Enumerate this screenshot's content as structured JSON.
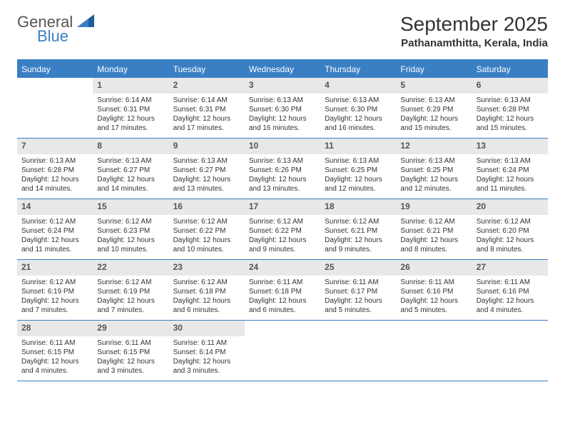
{
  "logo": {
    "text1": "General",
    "text2": "Blue"
  },
  "header": {
    "month_title": "September 2025",
    "location": "Pathanamthitta, Kerala, India"
  },
  "colors": {
    "accent": "#3a7fc4",
    "daynum_bg": "#e8e8e8",
    "bg": "#ffffff",
    "text": "#333333"
  },
  "weekdays": [
    "Sunday",
    "Monday",
    "Tuesday",
    "Wednesday",
    "Thursday",
    "Friday",
    "Saturday"
  ],
  "weeks": [
    [
      {
        "n": "",
        "lines": []
      },
      {
        "n": "1",
        "lines": [
          "Sunrise: 6:14 AM",
          "Sunset: 6:31 PM",
          "Daylight: 12 hours and 17 minutes."
        ]
      },
      {
        "n": "2",
        "lines": [
          "Sunrise: 6:14 AM",
          "Sunset: 6:31 PM",
          "Daylight: 12 hours and 17 minutes."
        ]
      },
      {
        "n": "3",
        "lines": [
          "Sunrise: 6:13 AM",
          "Sunset: 6:30 PM",
          "Daylight: 12 hours and 16 minutes."
        ]
      },
      {
        "n": "4",
        "lines": [
          "Sunrise: 6:13 AM",
          "Sunset: 6:30 PM",
          "Daylight: 12 hours and 16 minutes."
        ]
      },
      {
        "n": "5",
        "lines": [
          "Sunrise: 6:13 AM",
          "Sunset: 6:29 PM",
          "Daylight: 12 hours and 15 minutes."
        ]
      },
      {
        "n": "6",
        "lines": [
          "Sunrise: 6:13 AM",
          "Sunset: 6:28 PM",
          "Daylight: 12 hours and 15 minutes."
        ]
      }
    ],
    [
      {
        "n": "7",
        "lines": [
          "Sunrise: 6:13 AM",
          "Sunset: 6:28 PM",
          "Daylight: 12 hours and 14 minutes."
        ]
      },
      {
        "n": "8",
        "lines": [
          "Sunrise: 6:13 AM",
          "Sunset: 6:27 PM",
          "Daylight: 12 hours and 14 minutes."
        ]
      },
      {
        "n": "9",
        "lines": [
          "Sunrise: 6:13 AM",
          "Sunset: 6:27 PM",
          "Daylight: 12 hours and 13 minutes."
        ]
      },
      {
        "n": "10",
        "lines": [
          "Sunrise: 6:13 AM",
          "Sunset: 6:26 PM",
          "Daylight: 12 hours and 13 minutes."
        ]
      },
      {
        "n": "11",
        "lines": [
          "Sunrise: 6:13 AM",
          "Sunset: 6:25 PM",
          "Daylight: 12 hours and 12 minutes."
        ]
      },
      {
        "n": "12",
        "lines": [
          "Sunrise: 6:13 AM",
          "Sunset: 6:25 PM",
          "Daylight: 12 hours and 12 minutes."
        ]
      },
      {
        "n": "13",
        "lines": [
          "Sunrise: 6:13 AM",
          "Sunset: 6:24 PM",
          "Daylight: 12 hours and 11 minutes."
        ]
      }
    ],
    [
      {
        "n": "14",
        "lines": [
          "Sunrise: 6:12 AM",
          "Sunset: 6:24 PM",
          "Daylight: 12 hours and 11 minutes."
        ]
      },
      {
        "n": "15",
        "lines": [
          "Sunrise: 6:12 AM",
          "Sunset: 6:23 PM",
          "Daylight: 12 hours and 10 minutes."
        ]
      },
      {
        "n": "16",
        "lines": [
          "Sunrise: 6:12 AM",
          "Sunset: 6:22 PM",
          "Daylight: 12 hours and 10 minutes."
        ]
      },
      {
        "n": "17",
        "lines": [
          "Sunrise: 6:12 AM",
          "Sunset: 6:22 PM",
          "Daylight: 12 hours and 9 minutes."
        ]
      },
      {
        "n": "18",
        "lines": [
          "Sunrise: 6:12 AM",
          "Sunset: 6:21 PM",
          "Daylight: 12 hours and 9 minutes."
        ]
      },
      {
        "n": "19",
        "lines": [
          "Sunrise: 6:12 AM",
          "Sunset: 6:21 PM",
          "Daylight: 12 hours and 8 minutes."
        ]
      },
      {
        "n": "20",
        "lines": [
          "Sunrise: 6:12 AM",
          "Sunset: 6:20 PM",
          "Daylight: 12 hours and 8 minutes."
        ]
      }
    ],
    [
      {
        "n": "21",
        "lines": [
          "Sunrise: 6:12 AM",
          "Sunset: 6:19 PM",
          "Daylight: 12 hours and 7 minutes."
        ]
      },
      {
        "n": "22",
        "lines": [
          "Sunrise: 6:12 AM",
          "Sunset: 6:19 PM",
          "Daylight: 12 hours and 7 minutes."
        ]
      },
      {
        "n": "23",
        "lines": [
          "Sunrise: 6:12 AM",
          "Sunset: 6:18 PM",
          "Daylight: 12 hours and 6 minutes."
        ]
      },
      {
        "n": "24",
        "lines": [
          "Sunrise: 6:11 AM",
          "Sunset: 6:18 PM",
          "Daylight: 12 hours and 6 minutes."
        ]
      },
      {
        "n": "25",
        "lines": [
          "Sunrise: 6:11 AM",
          "Sunset: 6:17 PM",
          "Daylight: 12 hours and 5 minutes."
        ]
      },
      {
        "n": "26",
        "lines": [
          "Sunrise: 6:11 AM",
          "Sunset: 6:16 PM",
          "Daylight: 12 hours and 5 minutes."
        ]
      },
      {
        "n": "27",
        "lines": [
          "Sunrise: 6:11 AM",
          "Sunset: 6:16 PM",
          "Daylight: 12 hours and 4 minutes."
        ]
      }
    ],
    [
      {
        "n": "28",
        "lines": [
          "Sunrise: 6:11 AM",
          "Sunset: 6:15 PM",
          "Daylight: 12 hours and 4 minutes."
        ]
      },
      {
        "n": "29",
        "lines": [
          "Sunrise: 6:11 AM",
          "Sunset: 6:15 PM",
          "Daylight: 12 hours and 3 minutes."
        ]
      },
      {
        "n": "30",
        "lines": [
          "Sunrise: 6:11 AM",
          "Sunset: 6:14 PM",
          "Daylight: 12 hours and 3 minutes."
        ]
      },
      {
        "n": "",
        "lines": []
      },
      {
        "n": "",
        "lines": []
      },
      {
        "n": "",
        "lines": []
      },
      {
        "n": "",
        "lines": []
      }
    ]
  ]
}
